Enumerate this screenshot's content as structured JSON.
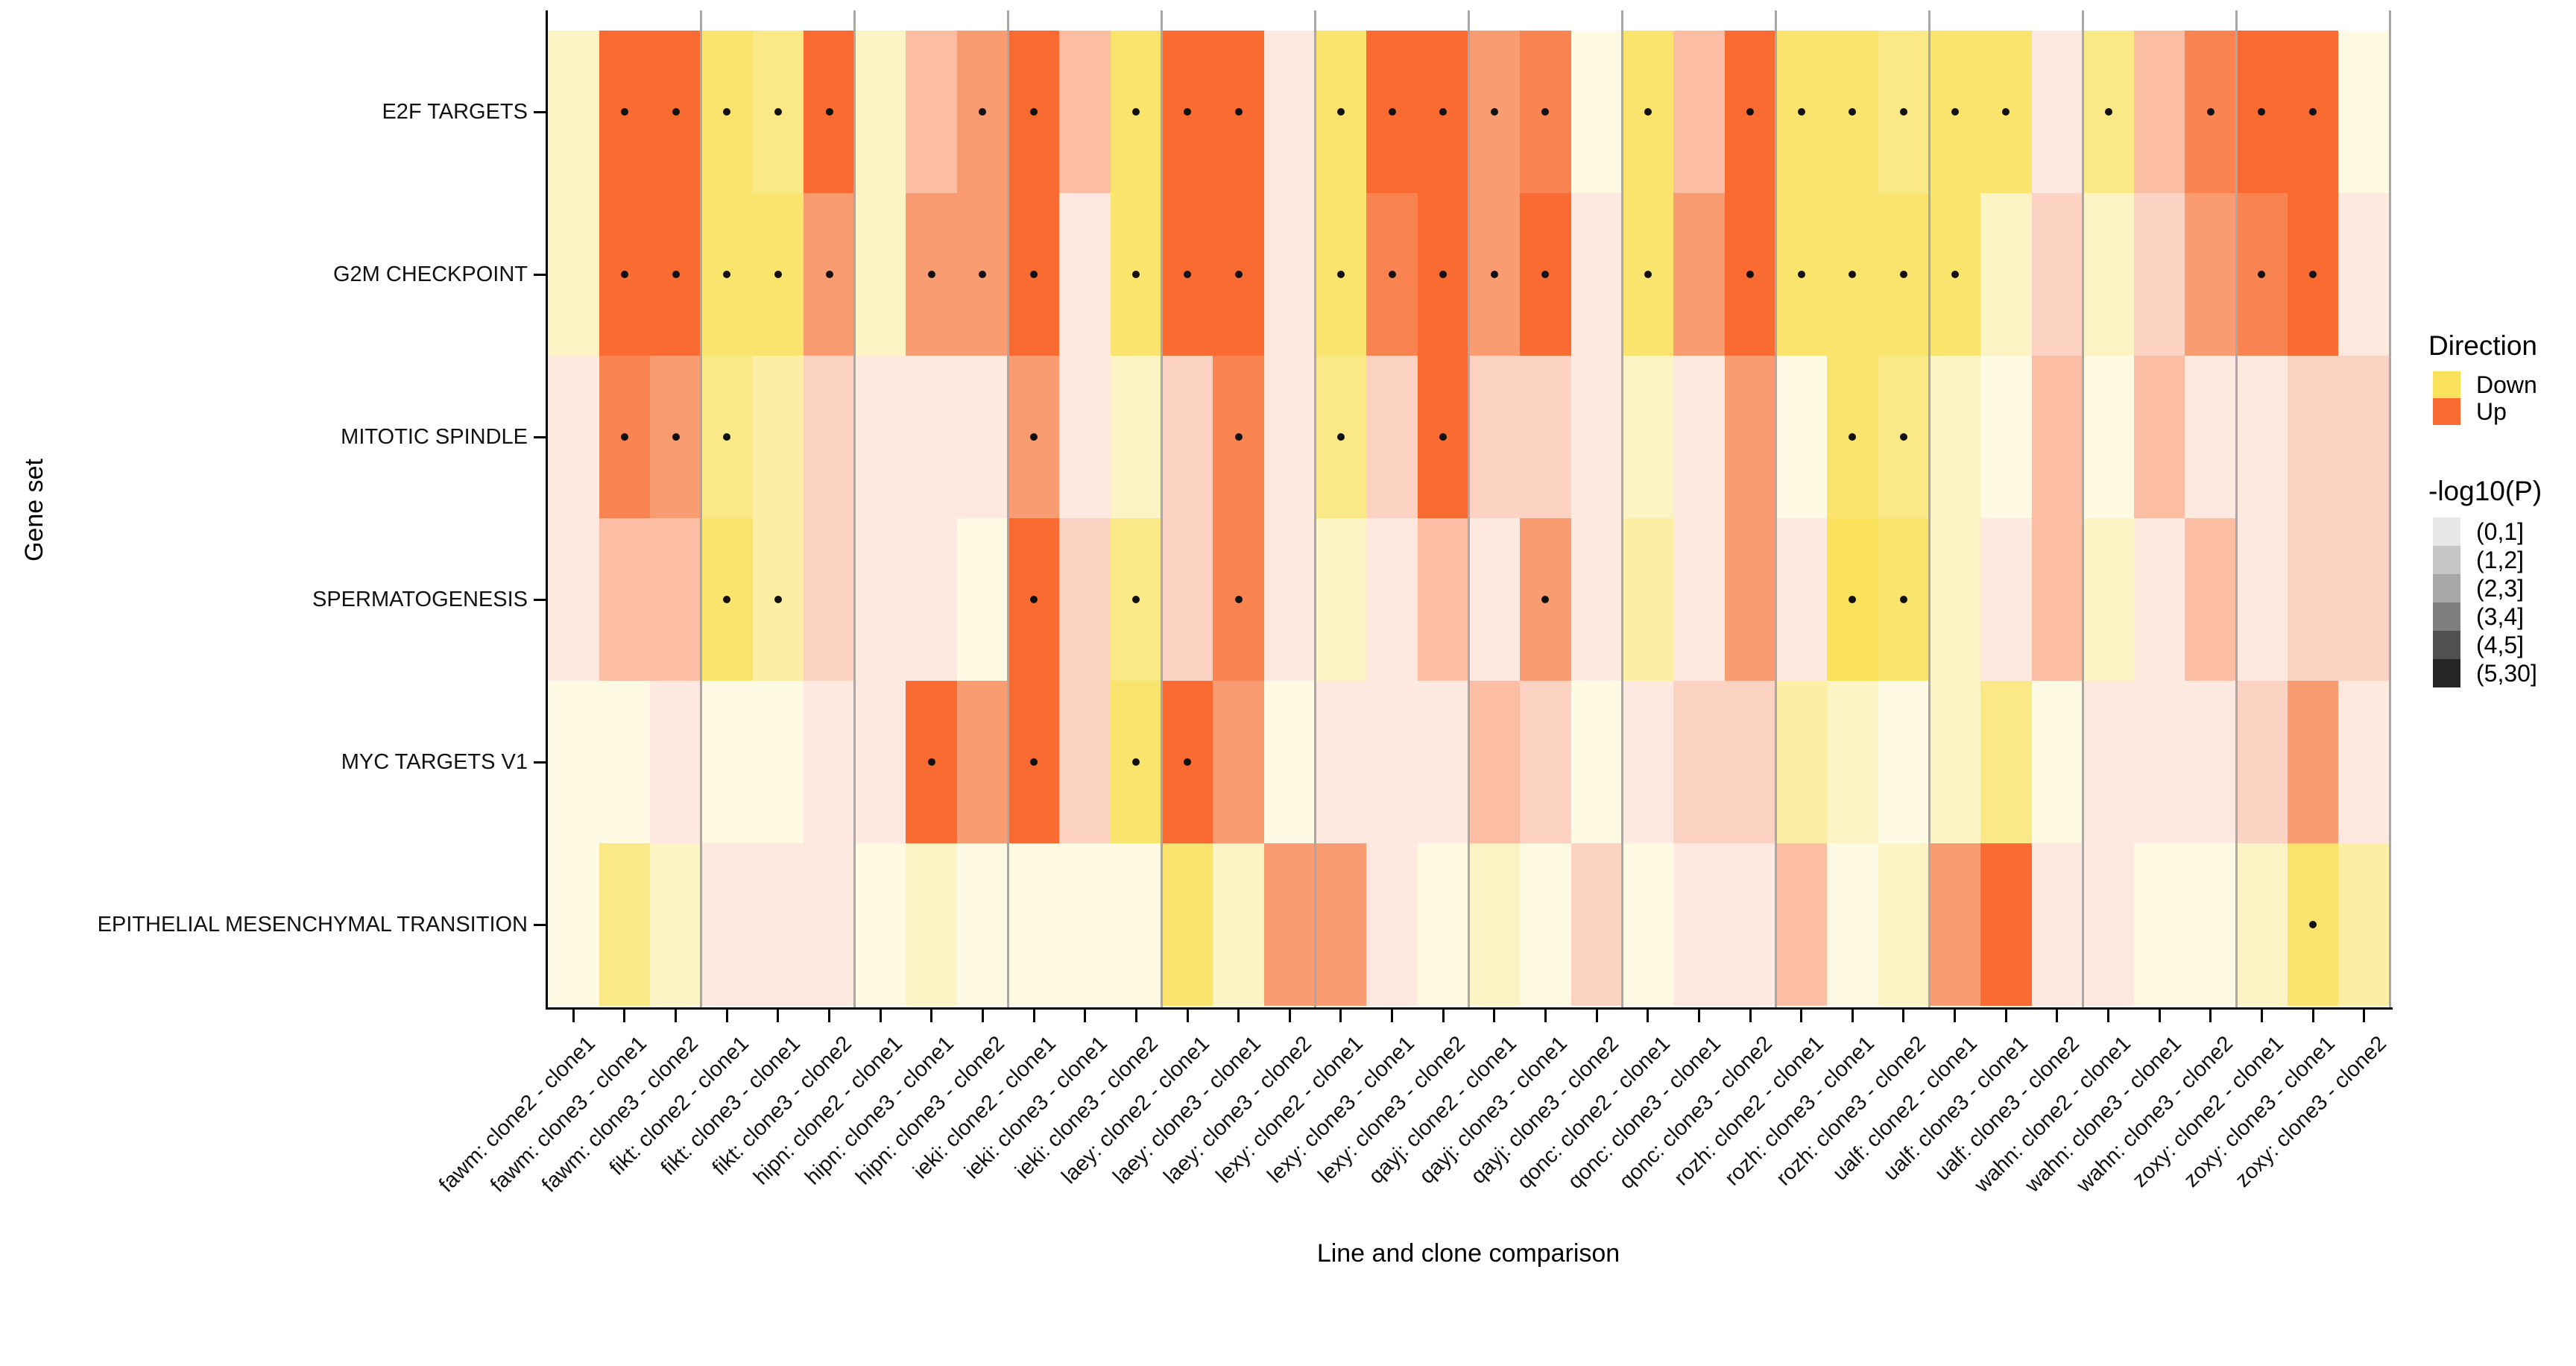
{
  "chart_data": {
    "type": "heatmap",
    "title": "",
    "xlabel": "Line and clone comparison",
    "ylabel": "Gene set",
    "rows": [
      "E2F TARGETS",
      "G2M CHECKPOINT",
      "MITOTIC SPINDLE",
      "SPERMATOGENESIS",
      "MYC TARGETS V1",
      "EPITHELIAL MESENCHYMAL TRANSITION"
    ],
    "columns": [
      "fawm: clone2 - clone1",
      "fawm: clone3 - clone1",
      "fawm: clone3 - clone2",
      "fikt: clone2 - clone1",
      "fikt: clone3 - clone1",
      "fikt: clone3 - clone2",
      "hipn: clone2 - clone1",
      "hipn: clone3 - clone1",
      "hipn: clone3 - clone2",
      "ieki: clone2 - clone1",
      "ieki: clone3 - clone1",
      "ieki: clone3 - clone2",
      "laey: clone2 - clone1",
      "laey: clone3 - clone1",
      "laey: clone3 - clone2",
      "lexy: clone2 - clone1",
      "lexy: clone3 - clone1",
      "lexy: clone3 - clone2",
      "qayj: clone2 - clone1",
      "qayj: clone3 - clone1",
      "qayj: clone3 - clone2",
      "qonc: clone2 - clone1",
      "qonc: clone3 - clone1",
      "qonc: clone3 - clone2",
      "rozh: clone2 - clone1",
      "rozh: clone3 - clone1",
      "rozh: clone3 - clone2",
      "ualf: clone2 - clone1",
      "ualf: clone3 - clone1",
      "ualf: clone3 - clone2",
      "wahn: clone2 - clone1",
      "wahn: clone3 - clone1",
      "wahn: clone3 - clone2",
      "zoxy: clone2 - clone1",
      "zoxy: clone3 - clone1",
      "zoxy: clone3 - clone2"
    ],
    "group_size": 3,
    "cell_direction": [
      "DUUDDUDUUUUDUUUDUUUUDDUUDDDDDUDUUUUD",
      "DUUDDUDUUUUDUUUDUUUUUDUUDDDDDUDUUUUU",
      "UUUDDUUUUUUDUUUDUUUUUDUUDDDDDUDUUUUU",
      "UUUDDUUUDUUDUUUDUUUUUDUUUDDDUUDUUUUU",
      "DDUDDUUUUUUDUUDUUUUUDUUUDDDDDDUUUUUU",
      "DDDUUUDDDDDDDDUUUDDDUDUUUDDUUUUDDDDD"
    ],
    "cell_plevel": [
      "266546234635661566451536554551435661",
      "266554244615661556461546555522224561",
      "154432111412251426221214154213131122",
      "133532111624251213141314165213213122",
      "111111164625641111321122321241111241",
      "142111121111524411212111312461111253"
    ],
    "cell_dot": [
      "011111001101110111110101111110101110",
      "011111011101110111110101111100000110",
      "011100000100010101000000011000000000",
      "000110000101010000010000011000000000",
      "000000010101100000000000000000000000",
      "000000000000000000000000000000000010"
    ],
    "palette": {
      "down": [
        "#FEFAE4",
        "#FDF4C5",
        "#FCEFA3",
        "#FBE987",
        "#FBE46E",
        "#FAE15C"
      ],
      "up": [
        "#FDE9E0",
        "#FCD3C3",
        "#FBBEA5",
        "#FA9C72",
        "#F98451",
        "#F96B30"
      ]
    },
    "separator_color": "#A8A8A8",
    "legend": {
      "direction_title": "Direction",
      "direction_items": [
        {
          "label": "Down",
          "color": "#FAE15C"
        },
        {
          "label": "Up",
          "color": "#F96B30"
        }
      ],
      "pvalue_title": "-log10(P)",
      "pvalue_items": [
        {
          "label": "(0,1]",
          "color": "#E7E7E7"
        },
        {
          "label": "(1,2]",
          "color": "#C6C6C6"
        },
        {
          "label": "(2,3]",
          "color": "#A7A7A7"
        },
        {
          "label": "(3,4]",
          "color": "#7E7E7E"
        },
        {
          "label": "(4,5]",
          "color": "#515151"
        },
        {
          "label": "(5,30]",
          "color": "#252525"
        }
      ]
    }
  }
}
